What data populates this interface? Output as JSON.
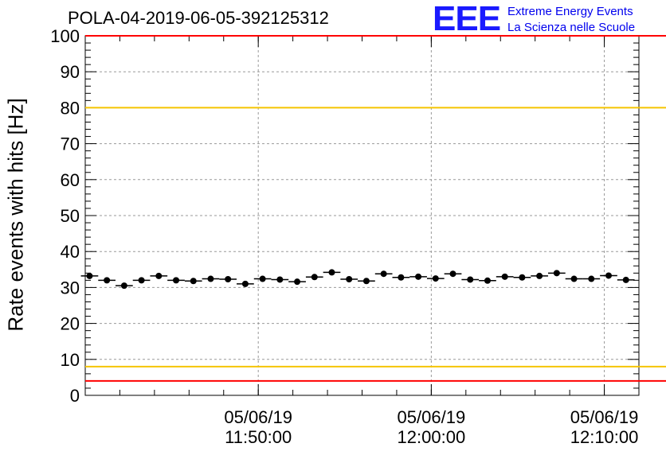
{
  "header": {
    "title": "POLA-04-2019-06-05-392125312",
    "logo_text": "EEE",
    "logo_line1": "Extreme Energy Events",
    "logo_line2": "La Scienza nelle Scuole"
  },
  "colors": {
    "reference_red": "#ff0000",
    "reference_yellow": "#f5c400",
    "logo_blue": "#1a1aff",
    "grid": "#999999",
    "points": "#000000"
  },
  "chart_data": {
    "type": "scatter",
    "title": "POLA-04-2019-06-05-392125312",
    "ylabel": "Rate events with hits [Hz]",
    "xlabel": "",
    "x_unit": "minutes after 11:40:00 on 05/06/19",
    "ylim": [
      0,
      100
    ],
    "xlim_time": [
      "11:40:00",
      "12:12:00"
    ],
    "grid": true,
    "y_ticks": [
      0,
      10,
      20,
      30,
      40,
      50,
      60,
      70,
      80,
      90,
      100
    ],
    "x_tick_labels": [
      {
        "date": "05/06/19",
        "time": "11:50:00"
      },
      {
        "date": "05/06/19",
        "time": "12:00:00"
      },
      {
        "date": "05/06/19",
        "time": "12:10:00"
      }
    ],
    "reference_lines": [
      {
        "y": 4,
        "color": "red"
      },
      {
        "y": 8,
        "color": "yellow"
      },
      {
        "y": 80,
        "color": "yellow"
      },
      {
        "y": 100,
        "color": "red"
      }
    ],
    "series": [
      {
        "x_time": [
          "11:40:15",
          "11:41:15",
          "11:42:15",
          "11:43:15",
          "11:44:15",
          "11:45:15",
          "11:46:15",
          "11:47:15",
          "11:48:15",
          "11:49:15",
          "11:50:15",
          "11:51:15",
          "11:52:15",
          "11:53:15",
          "11:54:15",
          "11:55:15",
          "11:56:15",
          "11:57:15",
          "11:58:15",
          "11:59:15",
          "12:00:15",
          "12:01:15",
          "12:02:15",
          "12:03:15",
          "12:04:15",
          "12:05:15",
          "12:06:15",
          "12:07:15",
          "12:08:15",
          "12:09:15",
          "12:10:15",
          "12:11:15"
        ],
        "values": [
          33.2,
          32.0,
          30.5,
          32.0,
          33.2,
          32.0,
          31.8,
          32.4,
          32.3,
          31.0,
          32.4,
          32.2,
          31.6,
          32.9,
          34.2,
          32.3,
          31.8,
          33.8,
          32.8,
          33.0,
          32.5,
          33.8,
          32.2,
          31.9,
          33.0,
          32.8,
          33.2,
          34.0,
          32.4,
          32.4,
          33.3,
          32.1
        ]
      }
    ]
  }
}
